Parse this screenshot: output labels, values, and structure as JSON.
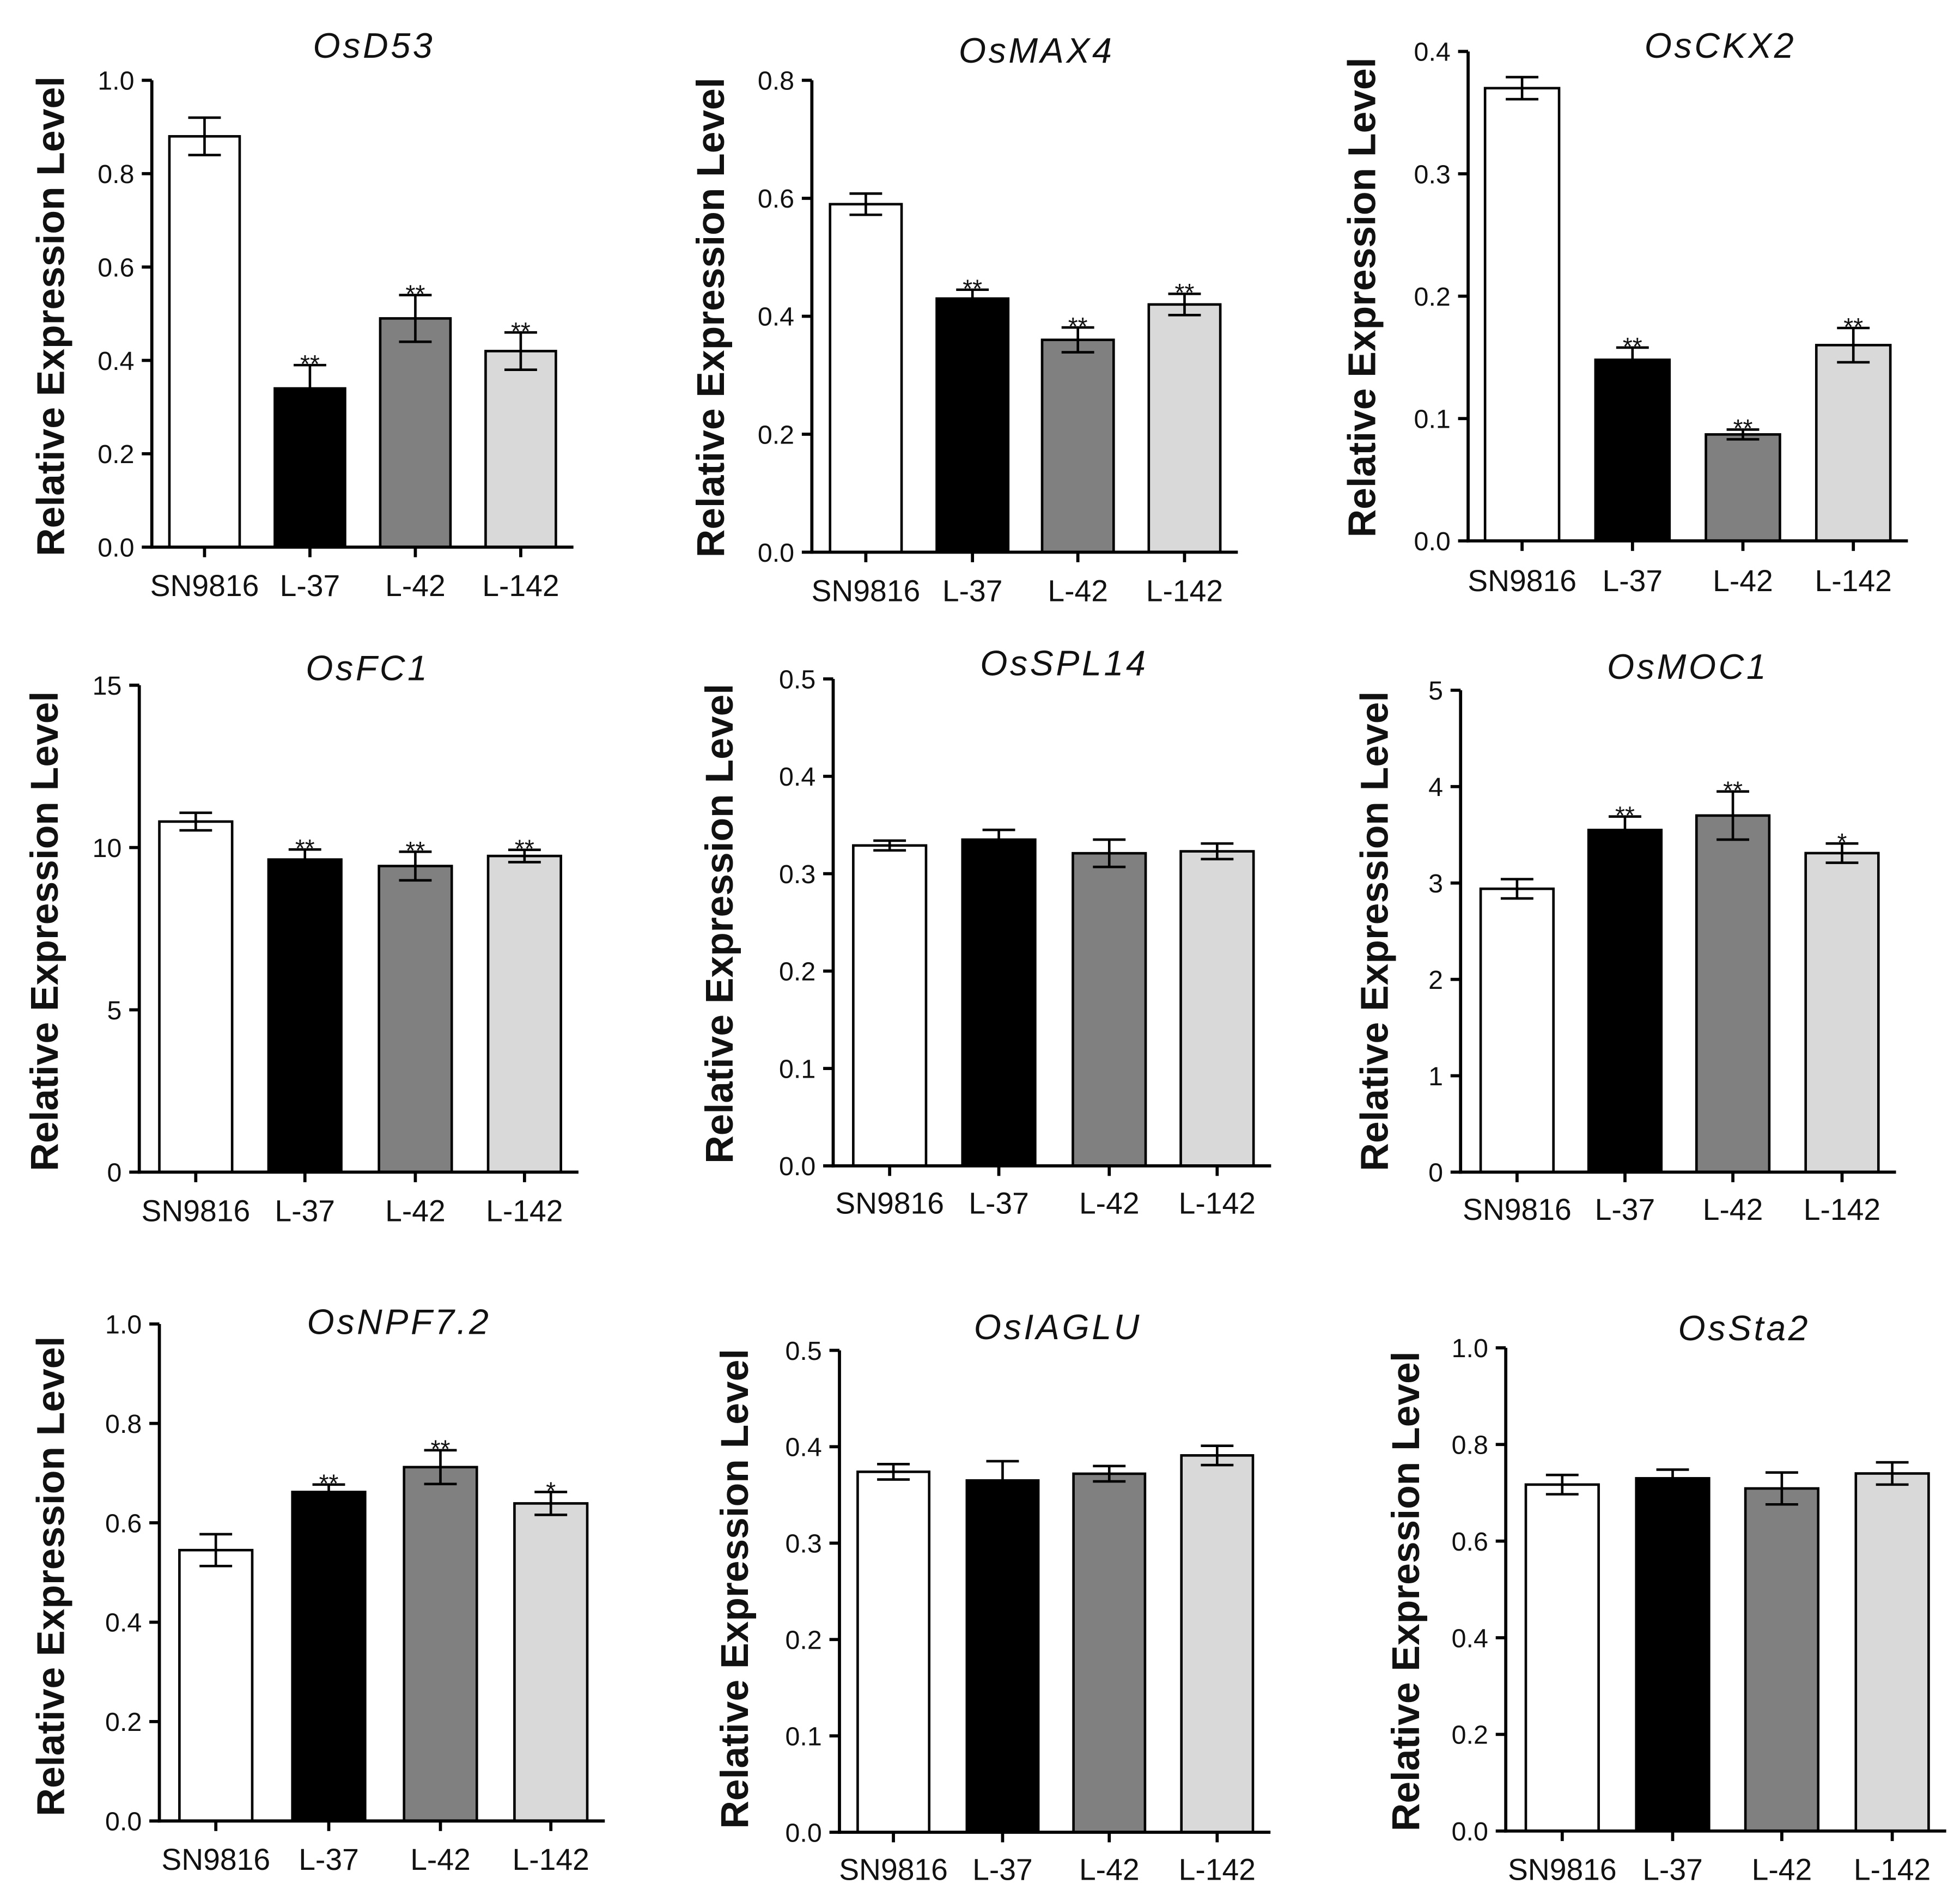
{
  "category_colors": [
    "#ffffff",
    "#000000",
    "#808080",
    "#d9d9d9"
  ],
  "chart_data": [
    {
      "type": "bar",
      "title": "OsD53",
      "ylabel": "Relative Expression Level",
      "categories": [
        "SN9816",
        "L-37",
        "L-42",
        "L-142"
      ],
      "values": [
        0.88,
        0.34,
        0.49,
        0.42
      ],
      "errors": [
        0.04,
        0.05,
        0.05,
        0.04
      ],
      "significance": [
        "",
        "**",
        "**",
        "**"
      ],
      "ylim": [
        0,
        1.0
      ],
      "yticks": [
        0,
        0.2,
        0.4,
        0.6,
        0.8,
        1.0
      ],
      "ytick_labels": [
        "0.0",
        "0.2",
        "0.4",
        "0.6",
        "0.8",
        "1.0"
      ]
    },
    {
      "type": "bar",
      "title": "OsMAX4",
      "ylabel": "Relative Expression Level",
      "categories": [
        "SN9816",
        "L-37",
        "L-42",
        "L-142"
      ],
      "values": [
        0.59,
        0.43,
        0.36,
        0.42
      ],
      "errors": [
        0.018,
        0.015,
        0.021,
        0.018
      ],
      "significance": [
        "",
        "**",
        "**",
        "**"
      ],
      "ylim": [
        0,
        0.8
      ],
      "yticks": [
        0,
        0.2,
        0.4,
        0.6,
        0.8
      ],
      "ytick_labels": [
        "0.0",
        "0.2",
        "0.4",
        "0.6",
        "0.8"
      ]
    },
    {
      "type": "bar",
      "title": "OsCKX2",
      "ylabel": "Relative Expression Level",
      "categories": [
        "SN9816",
        "L-37",
        "L-42",
        "L-142"
      ],
      "values": [
        0.37,
        0.148,
        0.087,
        0.16
      ],
      "errors": [
        0.009,
        0.01,
        0.004,
        0.014
      ],
      "significance": [
        "",
        "**",
        "**",
        "**"
      ],
      "ylim": [
        0,
        0.4
      ],
      "yticks": [
        0,
        0.1,
        0.2,
        0.3,
        0.4
      ],
      "ytick_labels": [
        "0.0",
        "0.1",
        "0.2",
        "0.3",
        "0.4"
      ]
    },
    {
      "type": "bar",
      "title": "OsFC1",
      "ylabel": "Relative Expression Level",
      "categories": [
        "SN9816",
        "L-37",
        "L-42",
        "L-142"
      ],
      "values": [
        10.8,
        9.63,
        9.43,
        9.74
      ],
      "errors": [
        0.27,
        0.31,
        0.44,
        0.19
      ],
      "significance": [
        "",
        "**",
        "**",
        "**"
      ],
      "ylim": [
        0,
        15
      ],
      "yticks": [
        0,
        5,
        10,
        15
      ],
      "ytick_labels": [
        "0",
        "5",
        "10",
        "15"
      ]
    },
    {
      "type": "bar",
      "title": "OsSPL14",
      "ylabel": "Relative Expression Level",
      "categories": [
        "SN9816",
        "L-37",
        "L-42",
        "L-142"
      ],
      "values": [
        0.329,
        0.335,
        0.321,
        0.323
      ],
      "errors": [
        0.005,
        0.01,
        0.014,
        0.008
      ],
      "ylim": [
        0,
        0.5
      ],
      "yticks": [
        0,
        0.1,
        0.2,
        0.3,
        0.4,
        0.5
      ],
      "ytick_labels": [
        "0.0",
        "0.1",
        "0.2",
        "0.3",
        "0.4",
        "0.5"
      ]
    },
    {
      "type": "bar",
      "title": "OsMOC1",
      "ylabel": "Relative Expression Level",
      "categories": [
        "SN9816",
        "L-37",
        "L-42",
        "L-142"
      ],
      "values": [
        2.94,
        3.55,
        3.7,
        3.31
      ],
      "errors": [
        0.1,
        0.14,
        0.25,
        0.1
      ],
      "significance": [
        "",
        "**",
        "**",
        "*"
      ],
      "ylim": [
        0,
        5
      ],
      "yticks": [
        0,
        1,
        2,
        3,
        4,
        5
      ],
      "ytick_labels": [
        "0",
        "1",
        "2",
        "3",
        "4",
        "5"
      ]
    },
    {
      "type": "bar",
      "title": "OsNPF7.2",
      "ylabel": "Relative Expression Level",
      "categories": [
        "SN9816",
        "L-37",
        "L-42",
        "L-142"
      ],
      "values": [
        0.545,
        0.662,
        0.712,
        0.639
      ],
      "errors": [
        0.032,
        0.015,
        0.034,
        0.023
      ],
      "significance": [
        "",
        "**",
        "**",
        "*"
      ],
      "ylim": [
        0,
        1.0
      ],
      "yticks": [
        0,
        0.2,
        0.4,
        0.6,
        0.8,
        1.0
      ],
      "ytick_labels": [
        "0.0",
        "0.2",
        "0.4",
        "0.6",
        "0.8",
        "1.0"
      ]
    },
    {
      "type": "bar",
      "title": "OsIAGLU",
      "ylabel": "Relative Expression Level",
      "categories": [
        "SN9816",
        "L-37",
        "L-42",
        "L-142"
      ],
      "values": [
        0.374,
        0.365,
        0.372,
        0.391
      ],
      "errors": [
        0.008,
        0.02,
        0.008,
        0.01
      ],
      "ylim": [
        0,
        0.5
      ],
      "yticks": [
        0,
        0.1,
        0.2,
        0.3,
        0.4,
        0.5
      ],
      "ytick_labels": [
        "0.0",
        "0.1",
        "0.2",
        "0.3",
        "0.4",
        "0.5"
      ]
    },
    {
      "type": "bar",
      "title": "OsSta2",
      "ylabel": "Relative Expression Level",
      "categories": [
        "SN9816",
        "L-37",
        "L-42",
        "L-142"
      ],
      "values": [
        0.717,
        0.73,
        0.709,
        0.74
      ],
      "errors": [
        0.02,
        0.018,
        0.033,
        0.023
      ],
      "ylim": [
        0,
        1.0
      ],
      "yticks": [
        0,
        0.2,
        0.4,
        0.6,
        0.8,
        1.0
      ],
      "ytick_labels": [
        "0.0",
        "0.2",
        "0.4",
        "0.6",
        "0.8",
        "1.0"
      ]
    }
  ]
}
